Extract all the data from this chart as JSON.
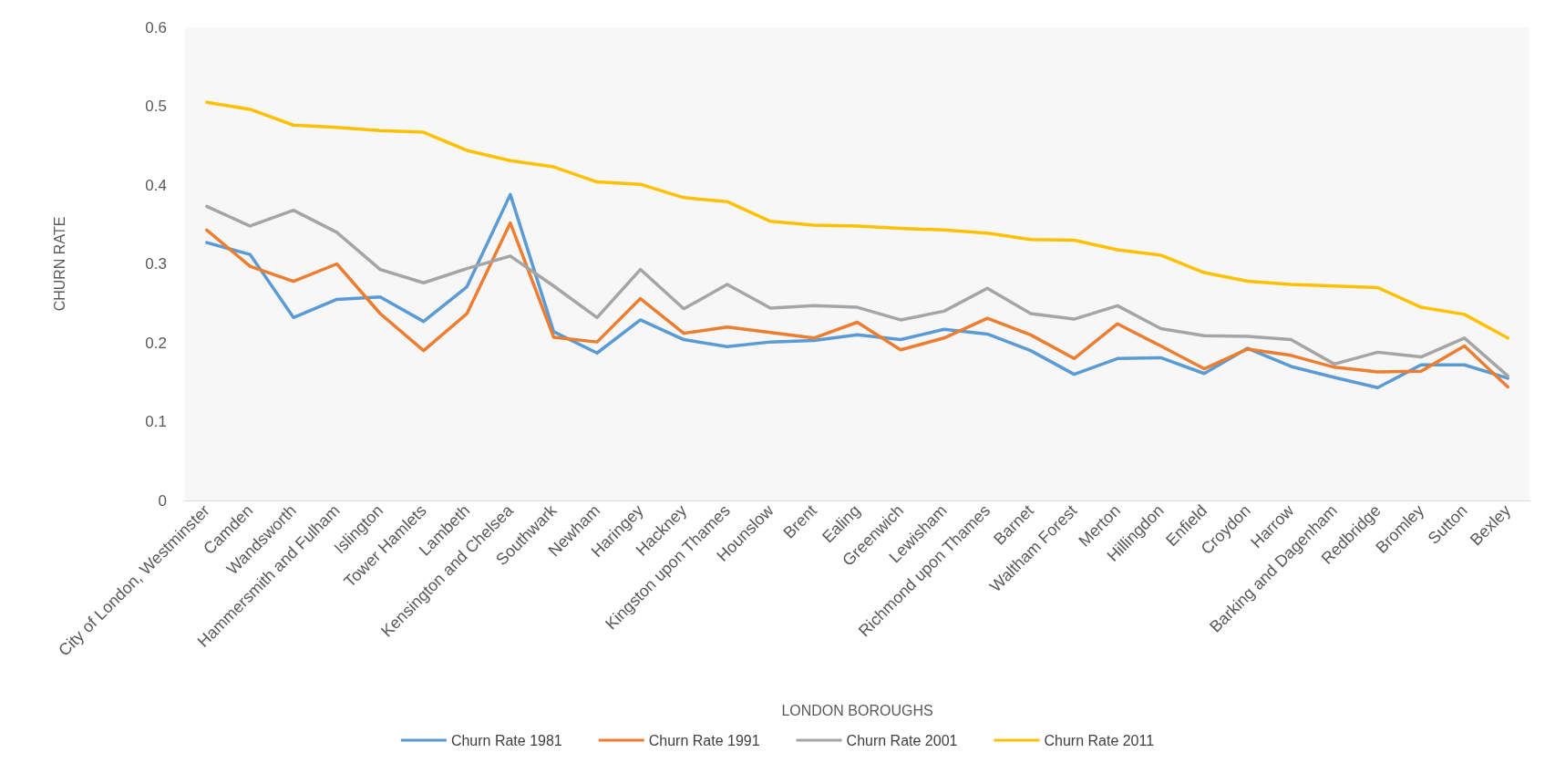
{
  "chart_data": {
    "type": "line",
    "xlabel": "LONDON BOROUGHS",
    "ylabel": "CHURN RATE",
    "categories": [
      "City of London, Westminster",
      "Camden",
      "Wandsworth",
      "Hammersmith and Fulham",
      "Islington",
      "Tower Hamlets",
      "Lambeth",
      "Kensington and Chelsea",
      "Southwark",
      "Newham",
      "Haringey",
      "Hackney",
      "Kingston upon Thames",
      "Hounslow",
      "Brent",
      "Ealing",
      "Greenwich",
      "Lewisham",
      "Richmond upon Thames",
      "Barnet",
      "Waltham Forest",
      "Merton",
      "Hillingdon",
      "Enfield",
      "Croydon",
      "Harrow",
      "Barking and Dagenham",
      "Redbridge",
      "Bromley",
      "Sutton",
      "Bexley"
    ],
    "series": [
      {
        "name": "Churn Rate 1981",
        "color": "#5b9bd5",
        "values": [
          0.327,
          0.312,
          0.232,
          0.255,
          0.258,
          0.227,
          0.271,
          0.388,
          0.214,
          0.187,
          0.229,
          0.204,
          0.195,
          0.201,
          0.203,
          0.21,
          0.204,
          0.217,
          0.211,
          0.19,
          0.16,
          0.18,
          0.181,
          0.161,
          0.193,
          0.17,
          0.156,
          0.143,
          0.172,
          0.172,
          0.155
        ]
      },
      {
        "name": "Churn Rate 1991",
        "color": "#ed7d31",
        "values": [
          0.343,
          0.297,
          0.278,
          0.3,
          0.237,
          0.19,
          0.237,
          0.352,
          0.207,
          0.201,
          0.256,
          0.212,
          0.22,
          0.213,
          0.206,
          0.226,
          0.191,
          0.206,
          0.231,
          0.21,
          0.18,
          0.224,
          0.196,
          0.167,
          0.192,
          0.184,
          0.169,
          0.163,
          0.164,
          0.196,
          0.144
        ]
      },
      {
        "name": "Churn Rate 2001",
        "color": "#a5a5a5",
        "values": [
          0.373,
          0.348,
          0.368,
          0.34,
          0.293,
          0.276,
          0.294,
          0.31,
          0.272,
          0.232,
          0.293,
          0.243,
          0.274,
          0.244,
          0.247,
          0.245,
          0.229,
          0.24,
          0.269,
          0.237,
          0.23,
          0.247,
          0.218,
          0.209,
          0.208,
          0.204,
          0.173,
          0.188,
          0.182,
          0.206,
          0.158
        ]
      },
      {
        "name": "Churn Rate 2011",
        "color": "#ffc000",
        "values": [
          0.505,
          0.496,
          0.476,
          0.473,
          0.469,
          0.467,
          0.444,
          0.431,
          0.423,
          0.404,
          0.401,
          0.384,
          0.379,
          0.354,
          0.349,
          0.348,
          0.345,
          0.343,
          0.339,
          0.331,
          0.33,
          0.318,
          0.311,
          0.289,
          0.278,
          0.274,
          0.272,
          0.27,
          0.245,
          0.236,
          0.206
        ]
      }
    ],
    "ylim": [
      0,
      0.6
    ],
    "yticks": [
      0,
      0.1,
      0.2,
      0.3,
      0.4,
      0.5,
      0.6
    ],
    "grid": false,
    "legend": "bottom",
    "marker": "none",
    "line_style": "solid"
  }
}
